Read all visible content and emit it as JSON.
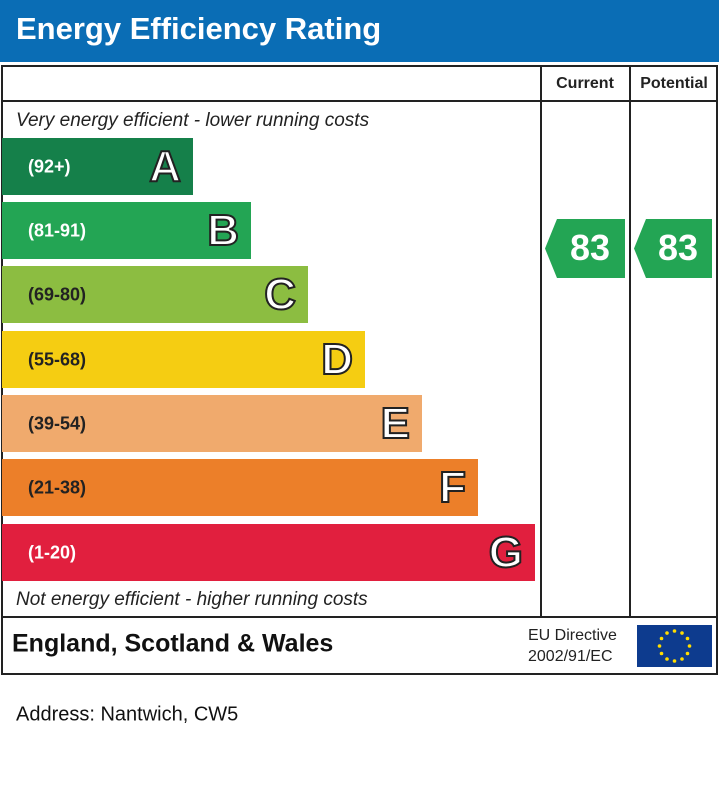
{
  "header": {
    "title": "Energy Efficiency Rating"
  },
  "columns": {
    "current": "Current",
    "potential": "Potential"
  },
  "top_note": "Very energy efficient - lower running costs",
  "bands": [
    {
      "range": "(92+)",
      "letter": "A",
      "color": "#15804a"
    },
    {
      "range": "(81-91)",
      "letter": "B",
      "color": "#23a554"
    },
    {
      "range": "(69-80)",
      "letter": "C",
      "color": "#8cbd41"
    },
    {
      "range": "(55-68)",
      "letter": "D",
      "color": "#f5cd12"
    },
    {
      "range": "(39-54)",
      "letter": "E",
      "color": "#f0aa6d"
    },
    {
      "range": "(21-38)",
      "letter": "F",
      "color": "#ec7f29"
    },
    {
      "range": "(1-20)",
      "letter": "G",
      "color": "#e11f3e"
    }
  ],
  "bottom_note": "Not energy efficient - higher running costs",
  "ratings": {
    "current": 83,
    "potential": 83
  },
  "footer": {
    "region": "England, Scotland & Wales",
    "directive": [
      "EU Directive",
      "2002/91/EC"
    ]
  },
  "address": "Address: Nantwich, CW5"
}
